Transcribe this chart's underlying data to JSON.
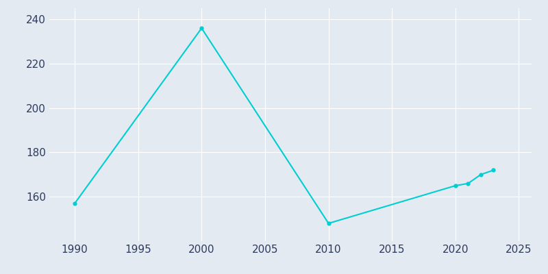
{
  "years": [
    1990,
    2000,
    2010,
    2020,
    2021,
    2022,
    2023
  ],
  "population": [
    157,
    236,
    148,
    165,
    166,
    170,
    172
  ],
  "line_color": "#00CED1",
  "marker_color": "#00CED1",
  "bg_color": "#E3EAF2",
  "grid_color": "#ffffff",
  "tick_color": "#2d3a5c",
  "xlim": [
    1988,
    2026
  ],
  "ylim": [
    140,
    245
  ],
  "yticks": [
    160,
    180,
    200,
    220,
    240
  ],
  "xticks": [
    1990,
    1995,
    2000,
    2005,
    2010,
    2015,
    2020,
    2025
  ]
}
